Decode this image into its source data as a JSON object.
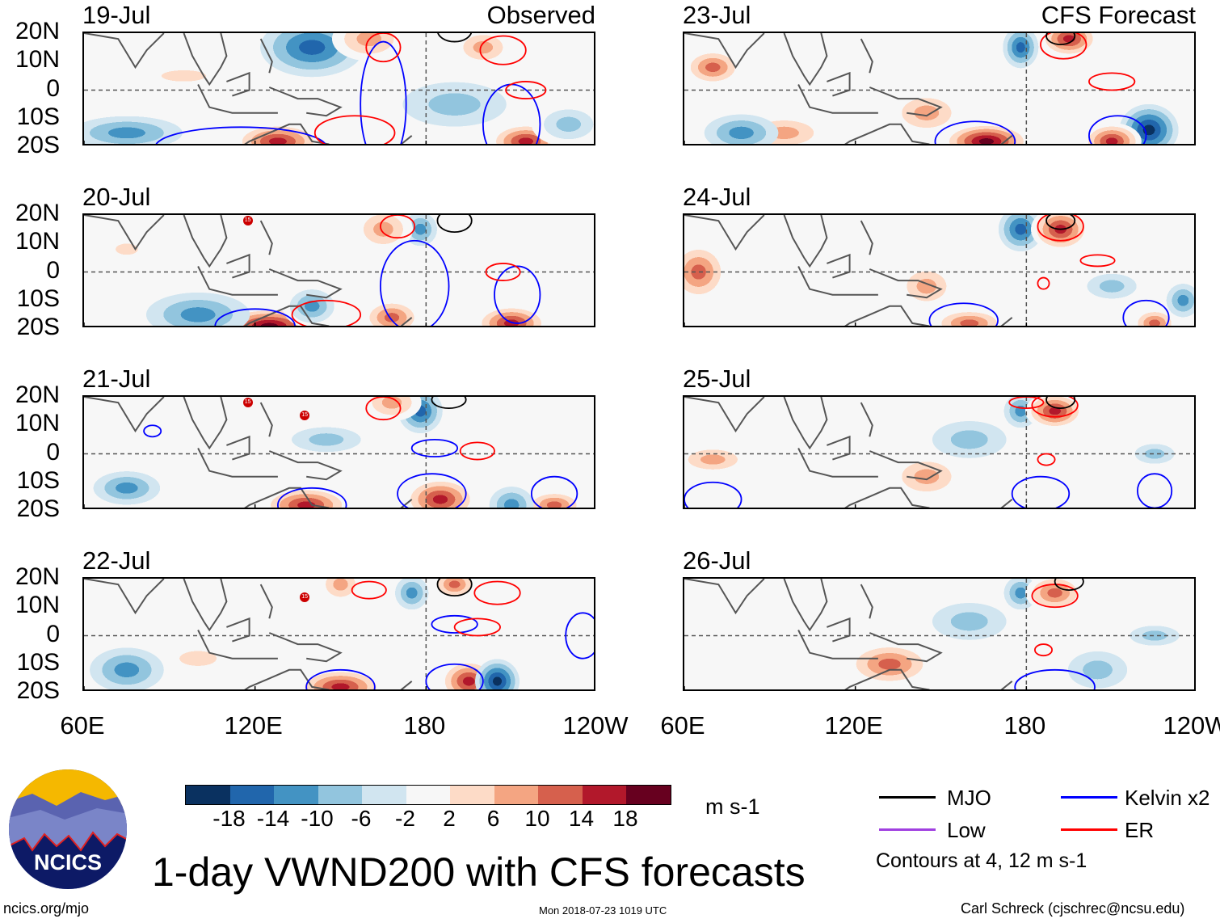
{
  "panels": {
    "left": [
      {
        "date": "19-Jul",
        "tag": "Observed"
      },
      {
        "date": "20-Jul"
      },
      {
        "date": "21-Jul"
      },
      {
        "date": "22-Jul"
      }
    ],
    "right": [
      {
        "date": "23-Jul",
        "tag": "CFS Forecast"
      },
      {
        "date": "24-Jul"
      },
      {
        "date": "25-Jul"
      },
      {
        "date": "26-Jul"
      }
    ]
  },
  "lat_labels": [
    "20N",
    "10N",
    "0",
    "10S",
    "20S"
  ],
  "lon_labels": [
    "60E",
    "120E",
    "180",
    "120W"
  ],
  "storm_label": "15",
  "colorbar": {
    "labels": [
      "-18",
      "-14",
      "-10",
      "-6",
      "-2",
      "2",
      "6",
      "10",
      "14",
      "18"
    ],
    "colors": [
      "#0a3160",
      "#2166ac",
      "#4393c3",
      "#92c5de",
      "#d1e5f0",
      "#f7f7f7",
      "#fddbc7",
      "#f4a582",
      "#d6604d",
      "#b2182b",
      "#67001f"
    ],
    "units": "m s-1"
  },
  "legend": {
    "items": [
      {
        "label": "MJO",
        "color": "#000000"
      },
      {
        "label": "Kelvin x2",
        "color": "#0000ff"
      },
      {
        "label": "Low",
        "color": "#a040e0"
      },
      {
        "label": "ER",
        "color": "#ff0000"
      }
    ],
    "note": "Contours at 4, 12 m s-1"
  },
  "title": "1-day VWND200 with CFS forecasts",
  "logo_text": "NCICS",
  "footer": {
    "left": "ncics.org/mjo",
    "center": "Mon 2018-07-23 1019 UTC",
    "right": "Carl Schreck (cjschrec@ncsu.edu)"
  }
}
